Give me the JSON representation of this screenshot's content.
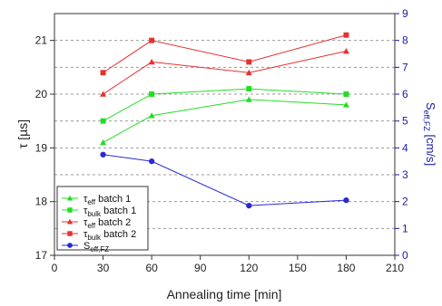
{
  "chart_data": {
    "type": "line",
    "x": [
      30,
      60,
      120,
      180
    ],
    "xlabel": "Annealing time [min]",
    "xlim": [
      0,
      210
    ],
    "xticks": [
      0,
      30,
      60,
      90,
      120,
      150,
      180,
      210
    ],
    "y_left": {
      "label": "τ [µs]",
      "lim": [
        17,
        21.5
      ],
      "ticks": [
        17,
        18,
        19,
        20,
        21
      ]
    },
    "y_right": {
      "label_main": "S",
      "label_sub": "eff,FZ",
      "label_unit": " [cm/s]",
      "lim": [
        0,
        9
      ],
      "ticks": [
        0,
        1,
        2,
        3,
        4,
        5,
        6,
        7,
        8,
        9
      ]
    },
    "grid": true,
    "legend_position": "bottom-left",
    "series": [
      {
        "name_main": "τ",
        "name_sub": "eff",
        "name_rest": " batch 1",
        "axis": "left",
        "marker": "triangle",
        "color": "#22dd22",
        "values": [
          19.1,
          19.6,
          19.9,
          19.8
        ]
      },
      {
        "name_main": "τ",
        "name_sub": "bulk",
        "name_rest": " batch 1",
        "axis": "left",
        "marker": "square",
        "color": "#22dd22",
        "values": [
          19.5,
          20.0,
          20.1,
          20.0
        ]
      },
      {
        "name_main": "τ",
        "name_sub": "eff",
        "name_rest": " batch 2",
        "axis": "left",
        "marker": "triangle",
        "color": "#e63030",
        "values": [
          20.0,
          20.6,
          20.4,
          20.8
        ]
      },
      {
        "name_main": "τ",
        "name_sub": "bulk",
        "name_rest": " batch 2",
        "axis": "left",
        "marker": "square",
        "color": "#e63030",
        "values": [
          20.4,
          21.0,
          20.6,
          21.1
        ]
      },
      {
        "name_main": "S",
        "name_sub": "eff,FZ",
        "name_rest": "",
        "axis": "right",
        "marker": "circle",
        "color": "#2a2ad0",
        "values": [
          3.75,
          3.5,
          1.85,
          2.05
        ]
      }
    ]
  }
}
